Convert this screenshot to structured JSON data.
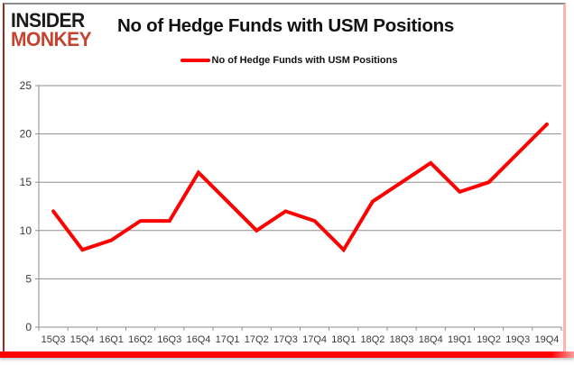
{
  "header": {
    "logo": {
      "line1": "INSIDER",
      "line2": "MONKEY"
    },
    "title": "No of Hedge Funds with USM Positions"
  },
  "legend": {
    "label": "No of Hedge Funds with USM Positions",
    "swatch_color": "#ff0000"
  },
  "chart_data": {
    "type": "line",
    "title": "No of Hedge Funds with USM Positions",
    "series_name": "No of Hedge Funds with USM Positions",
    "categories": [
      "15Q3",
      "15Q4",
      "16Q1",
      "16Q2",
      "16Q3",
      "16Q4",
      "17Q1",
      "17Q2",
      "17Q3",
      "17Q4",
      "18Q1",
      "18Q2",
      "18Q3",
      "18Q4",
      "19Q1",
      "19Q2",
      "19Q3",
      "19Q4"
    ],
    "values": [
      12,
      8,
      9,
      11,
      11,
      16,
      13,
      10,
      12,
      11,
      8,
      13,
      15,
      17,
      14,
      15,
      18,
      21
    ],
    "xlabel": "",
    "ylabel": "",
    "ylim": [
      0,
      25
    ],
    "yticks": [
      0,
      5,
      10,
      15,
      20,
      25
    ],
    "grid": true,
    "legend_position": "top-center",
    "line_color": "#ff0000",
    "grid_color": "#8e8e8e",
    "axis_text_color": "#3a3a3a"
  },
  "colors": {
    "accent_red": "#ff0000",
    "logo_red": "#c4432e",
    "frame_top": "#8c8c8c",
    "frame_left": "#9c2a21",
    "frame_right": "#ffb3b0",
    "bottom_bar": "#ff0000"
  }
}
